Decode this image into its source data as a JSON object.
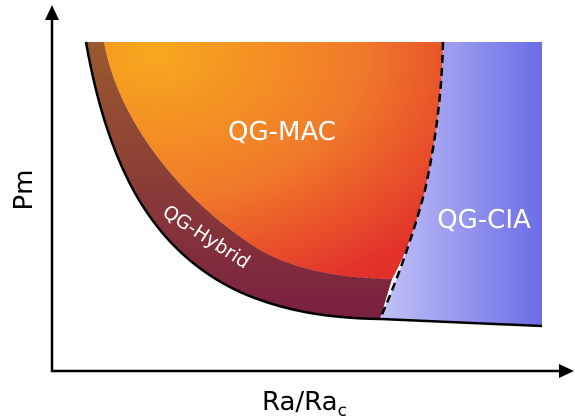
{
  "axes": {
    "xlabel": "Ra/Ra",
    "xlabel_subscript": "c",
    "ylabel": "Pm"
  },
  "regions": {
    "mac": {
      "label": "QG-MAC",
      "color_top": "#f5a623",
      "color_bottom": "#e0402a"
    },
    "cia": {
      "label": "QG-CIA",
      "color_left": "#b8b8f5",
      "color_right": "#6e6ee8"
    },
    "hybrid": {
      "label": "QG-Hybrid",
      "color_top": "#9a5a2a",
      "color_bottom": "#7a1f3a"
    }
  }
}
